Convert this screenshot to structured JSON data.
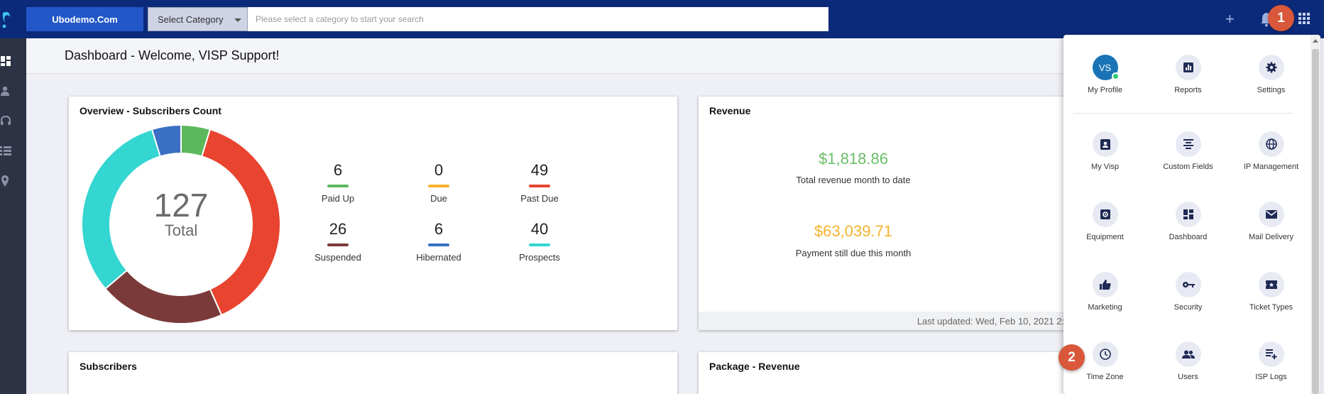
{
  "brand": "Ubodemo.Com",
  "search": {
    "category_label": "Select Category",
    "placeholder": "Please select a category to start your search"
  },
  "annotations": {
    "step1": "1",
    "step2": "2"
  },
  "page_title": "Dashboard - Welcome, VISP Support!",
  "overview": {
    "title": "Overview - Subscribers Count",
    "total_value": "127",
    "total_label": "Total",
    "stats": [
      {
        "value": "6",
        "label": "Paid Up",
        "color": "#5cb85c"
      },
      {
        "value": "0",
        "label": "Due",
        "color": "#f4b32b"
      },
      {
        "value": "49",
        "label": "Past Due",
        "color": "#e8442f"
      },
      {
        "value": "26",
        "label": "Suspended",
        "color": "#7b3a3a"
      },
      {
        "value": "6",
        "label": "Hibernated",
        "color": "#3a6fc4"
      },
      {
        "value": "40",
        "label": "Prospects",
        "color": "#33d6d0"
      }
    ]
  },
  "revenue": {
    "title": "Revenue",
    "month_value": "$1,818.86",
    "month_label": "Total revenue month to date",
    "month_color": "#6abf69",
    "due_value": "$63,039.71",
    "due_label": "Payment still due this month",
    "due_color": "#f4b32b",
    "updated": "Last updated: Wed, Feb 10, 2021 2:"
  },
  "subscribers": {
    "title": "Subscribers"
  },
  "package_revenue": {
    "title": "Package - Revenue"
  },
  "menu": {
    "profile": {
      "initials": "VS",
      "label": "My Profile"
    },
    "items": [
      {
        "label": "Reports",
        "icon": "reports-icon"
      },
      {
        "label": "Settings",
        "icon": "settings-icon"
      },
      {
        "label": "My Visp",
        "icon": "my-visp-icon"
      },
      {
        "label": "Custom Fields",
        "icon": "custom-fields-icon"
      },
      {
        "label": "IP Management",
        "icon": "ip-management-icon"
      },
      {
        "label": "Equipment",
        "icon": "equipment-icon"
      },
      {
        "label": "Dashboard",
        "icon": "dashboard-icon"
      },
      {
        "label": "Mail Delivery",
        "icon": "mail-icon"
      },
      {
        "label": "Marketing",
        "icon": "thumbs-up-icon"
      },
      {
        "label": "Security",
        "icon": "key-icon"
      },
      {
        "label": "Ticket Types",
        "icon": "ticket-icon"
      },
      {
        "label": "Time Zone",
        "icon": "clock-icon"
      },
      {
        "label": "Users",
        "icon": "users-icon"
      },
      {
        "label": "ISP Logs",
        "icon": "logs-icon"
      }
    ]
  }
}
